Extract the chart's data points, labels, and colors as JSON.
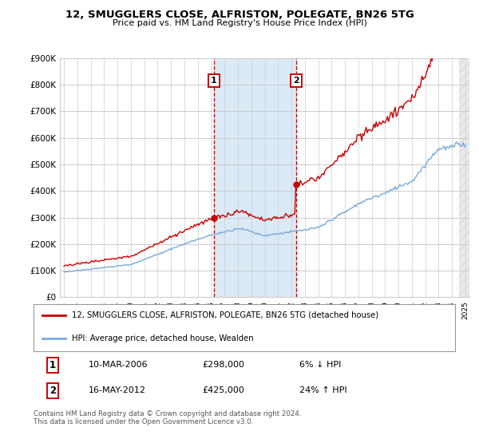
{
  "title": "12, SMUGGLERS CLOSE, ALFRISTON, POLEGATE, BN26 5TG",
  "subtitle": "Price paid vs. HM Land Registry's House Price Index (HPI)",
  "ylim": [
    0,
    900000
  ],
  "yticks": [
    0,
    100000,
    200000,
    300000,
    400000,
    500000,
    600000,
    700000,
    800000,
    900000
  ],
  "ytick_labels": [
    "£0",
    "£100K",
    "£200K",
    "£300K",
    "£400K",
    "£500K",
    "£600K",
    "£700K",
    "£800K",
    "£900K"
  ],
  "x_start_year": 1995,
  "x_end_year": 2025,
  "red_color": "#cc0000",
  "blue_color": "#7aaadd",
  "shade_color": "#daeaf7",
  "sale1_year": 2006.19,
  "sale1_price": 298000,
  "sale2_year": 2012.37,
  "sale2_price": 425000,
  "legend_property": "12, SMUGGLERS CLOSE, ALFRISTON, POLEGATE, BN26 5TG (detached house)",
  "legend_hpi": "HPI: Average price, detached house, Wealden",
  "sale1_date": "10-MAR-2006",
  "sale1_amount": "£298,000",
  "sale1_pct": "6% ↓ HPI",
  "sale2_date": "16-MAY-2012",
  "sale2_amount": "£425,000",
  "sale2_pct": "24% ↑ HPI",
  "footnote": "Contains HM Land Registry data © Crown copyright and database right 2024.\nThis data is licensed under the Open Government Licence v3.0.",
  "background_color": "#ffffff",
  "grid_color": "#cccccc"
}
